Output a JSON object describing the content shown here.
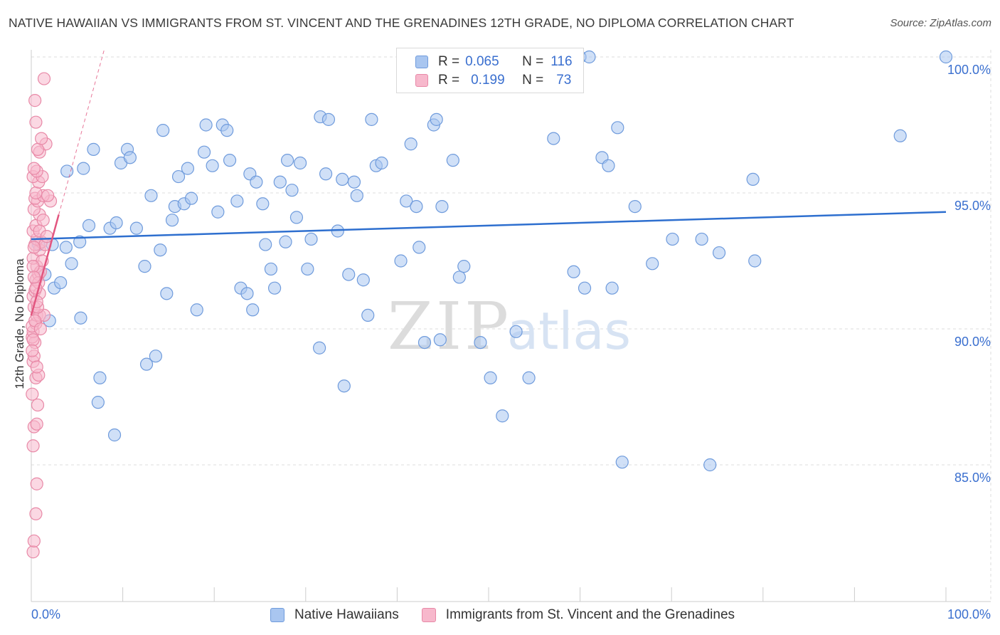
{
  "title": "NATIVE HAWAIIAN VS IMMIGRANTS FROM ST. VINCENT AND THE GRENADINES 12TH GRADE, NO DIPLOMA CORRELATION CHART",
  "source": "Source: ZipAtlas.com",
  "watermark": {
    "zip": "ZIP",
    "atlas": "atlas"
  },
  "legend_top": {
    "rows": [
      {
        "r_label": "R =",
        "r_value": "0.065",
        "n_label": "N =",
        "n_value": "116",
        "color": "#a9c6f0",
        "stroke": "#6f9bdc"
      },
      {
        "r_label": "R =",
        "r_value": "0.199",
        "n_label": "N =",
        "n_value": "73",
        "color": "#f7b8cc",
        "stroke": "#e889a7"
      }
    ]
  },
  "chart_data": {
    "type": "scatter",
    "title": "NATIVE HAWAIIAN VS IMMIGRANTS FROM ST. VINCENT AND THE GRENADINES 12TH GRADE, NO DIPLOMA CORRELATION CHART",
    "xlabel": "",
    "ylabel": "12th Grade, No Diploma",
    "xlim": [
      0,
      105
    ],
    "ylim": [
      80.2,
      100.9
    ],
    "x_tick_labels": [
      {
        "value": 0,
        "label": "0.0%"
      },
      {
        "value": 100,
        "label": "100.0%"
      }
    ],
    "y_tick_labels": [
      {
        "value": 85,
        "label": "85.0%"
      },
      {
        "value": 90,
        "label": "90.0%"
      },
      {
        "value": 95,
        "label": "95.0%"
      },
      {
        "value": 100,
        "label": "100.0%"
      }
    ],
    "grid": true,
    "legend_position": "bottom",
    "series": [
      {
        "name": "Native Hawaiians",
        "color": "#a9c6f0",
        "stroke": "#6f9bdc",
        "trend": {
          "x": [
            0,
            100
          ],
          "y": [
            93.3,
            94.3
          ],
          "color": "#2e6fcf"
        },
        "points": [
          [
            0.8,
            93.1
          ],
          [
            1.5,
            92.0
          ],
          [
            2.0,
            90.3
          ],
          [
            2.3,
            93.1
          ],
          [
            2.5,
            91.5
          ],
          [
            3.2,
            91.7
          ],
          [
            3.8,
            93.0
          ],
          [
            3.9,
            95.8
          ],
          [
            4.4,
            92.4
          ],
          [
            5.3,
            93.2
          ],
          [
            5.4,
            90.4
          ],
          [
            5.7,
            95.9
          ],
          [
            6.3,
            93.8
          ],
          [
            6.8,
            96.6
          ],
          [
            7.5,
            88.2
          ],
          [
            7.3,
            87.3
          ],
          [
            8.6,
            93.7
          ],
          [
            9.1,
            86.1
          ],
          [
            9.3,
            93.9
          ],
          [
            9.8,
            96.1
          ],
          [
            10.5,
            96.6
          ],
          [
            10.8,
            96.3
          ],
          [
            11.5,
            93.7
          ],
          [
            12.6,
            88.7
          ],
          [
            12.4,
            92.3
          ],
          [
            13.1,
            94.9
          ],
          [
            13.6,
            89.0
          ],
          [
            14.1,
            92.9
          ],
          [
            14.4,
            97.3
          ],
          [
            14.8,
            91.3
          ],
          [
            15.4,
            94.0
          ],
          [
            15.7,
            94.5
          ],
          [
            16.1,
            95.6
          ],
          [
            16.7,
            94.6
          ],
          [
            17.1,
            95.9
          ],
          [
            17.5,
            94.8
          ],
          [
            18.1,
            90.7
          ],
          [
            18.9,
            96.5
          ],
          [
            19.1,
            97.5
          ],
          [
            19.8,
            96.0
          ],
          [
            20.4,
            94.3
          ],
          [
            20.9,
            97.5
          ],
          [
            21.4,
            97.3
          ],
          [
            21.7,
            96.2
          ],
          [
            22.5,
            94.7
          ],
          [
            22.9,
            91.5
          ],
          [
            23.6,
            91.3
          ],
          [
            23.9,
            95.7
          ],
          [
            24.2,
            90.7
          ],
          [
            24.6,
            95.4
          ],
          [
            25.3,
            94.6
          ],
          [
            25.6,
            93.1
          ],
          [
            26.2,
            92.2
          ],
          [
            26.6,
            91.5
          ],
          [
            27.2,
            95.4
          ],
          [
            27.8,
            93.2
          ],
          [
            28.0,
            96.2
          ],
          [
            28.5,
            95.1
          ],
          [
            29.0,
            94.1
          ],
          [
            29.4,
            96.1
          ],
          [
            30.2,
            92.2
          ],
          [
            30.6,
            93.3
          ],
          [
            31.5,
            89.3
          ],
          [
            31.6,
            97.8
          ],
          [
            32.2,
            95.7
          ],
          [
            32.5,
            97.7
          ],
          [
            33.5,
            93.6
          ],
          [
            34.0,
            95.5
          ],
          [
            34.2,
            87.9
          ],
          [
            34.7,
            92.0
          ],
          [
            35.3,
            95.4
          ],
          [
            35.6,
            94.9
          ],
          [
            36.3,
            91.8
          ],
          [
            36.8,
            90.5
          ],
          [
            37.2,
            97.7
          ],
          [
            37.7,
            96.0
          ],
          [
            38.3,
            96.1
          ],
          [
            40.4,
            92.5
          ],
          [
            41.0,
            94.7
          ],
          [
            41.5,
            96.8
          ],
          [
            42.1,
            94.5
          ],
          [
            42.4,
            93.0
          ],
          [
            43.0,
            89.5
          ],
          [
            44.0,
            97.5
          ],
          [
            44.3,
            97.7
          ],
          [
            44.7,
            89.6
          ],
          [
            44.9,
            94.5
          ],
          [
            46.1,
            96.2
          ],
          [
            46.8,
            91.9
          ],
          [
            47.3,
            92.3
          ],
          [
            49.1,
            89.5
          ],
          [
            50.2,
            88.2
          ],
          [
            51.5,
            86.8
          ],
          [
            53.0,
            89.9
          ],
          [
            54.4,
            88.2
          ],
          [
            57.1,
            97.0
          ],
          [
            59.3,
            92.1
          ],
          [
            60.5,
            91.5
          ],
          [
            62.4,
            96.3
          ],
          [
            63.1,
            96.0
          ],
          [
            63.5,
            91.5
          ],
          [
            64.1,
            97.4
          ],
          [
            64.6,
            85.1
          ],
          [
            66.0,
            94.5
          ],
          [
            67.9,
            92.4
          ],
          [
            70.1,
            93.3
          ],
          [
            73.3,
            93.3
          ],
          [
            74.2,
            85.0
          ],
          [
            75.2,
            92.8
          ],
          [
            78.9,
            95.5
          ],
          [
            79.1,
            92.5
          ],
          [
            95.0,
            97.1
          ],
          [
            100.0,
            100.0
          ],
          [
            41.0,
            100.0
          ],
          [
            60.0,
            100.0
          ],
          [
            61.0,
            100.0
          ]
        ]
      },
      {
        "name": "Immigrants from St. Vincent and the Grenadines",
        "color": "#f7b8cc",
        "stroke": "#e889a7",
        "trend": {
          "x": [
            0,
            3.0
          ],
          "y": [
            90.5,
            94.2
          ],
          "color": "#e2557f",
          "extension": {
            "x": [
              3.0,
              8.0
            ],
            "y": [
              94.2,
              100.3
            ]
          }
        },
        "points": [
          [
            0.2,
            81.8
          ],
          [
            0.3,
            82.2
          ],
          [
            0.5,
            83.2
          ],
          [
            0.6,
            84.3
          ],
          [
            0.2,
            85.7
          ],
          [
            0.3,
            86.4
          ],
          [
            0.6,
            86.5
          ],
          [
            0.1,
            87.6
          ],
          [
            0.7,
            87.2
          ],
          [
            0.5,
            88.2
          ],
          [
            0.8,
            88.3
          ],
          [
            0.2,
            88.8
          ],
          [
            0.3,
            89.0
          ],
          [
            0.4,
            89.5
          ],
          [
            0.1,
            89.7
          ],
          [
            0.2,
            89.9
          ],
          [
            0.5,
            90.2
          ],
          [
            0.6,
            90.5
          ],
          [
            0.9,
            90.5
          ],
          [
            1.4,
            90.5
          ],
          [
            0.3,
            90.8
          ],
          [
            0.7,
            90.8
          ],
          [
            0.2,
            91.2
          ],
          [
            0.4,
            91.4
          ],
          [
            0.9,
            91.3
          ],
          [
            0.5,
            91.8
          ],
          [
            0.8,
            92.0
          ],
          [
            0.6,
            92.3
          ],
          [
            0.2,
            92.6
          ],
          [
            0.9,
            92.9
          ],
          [
            0.4,
            93.1
          ],
          [
            1.1,
            93.2
          ],
          [
            0.6,
            93.3
          ],
          [
            1.5,
            93.1
          ],
          [
            0.2,
            93.6
          ],
          [
            0.5,
            93.8
          ],
          [
            0.9,
            94.2
          ],
          [
            0.3,
            94.4
          ],
          [
            0.7,
            94.7
          ],
          [
            2.1,
            94.7
          ],
          [
            0.4,
            94.8
          ],
          [
            1.3,
            94.9
          ],
          [
            1.8,
            94.9
          ],
          [
            0.5,
            95.0
          ],
          [
            0.8,
            95.4
          ],
          [
            0.2,
            95.6
          ],
          [
            1.2,
            95.6
          ],
          [
            0.6,
            95.8
          ],
          [
            0.3,
            95.9
          ],
          [
            0.9,
            96.5
          ],
          [
            1.6,
            96.8
          ],
          [
            0.7,
            96.6
          ],
          [
            1.1,
            97.0
          ],
          [
            0.5,
            97.6
          ],
          [
            0.4,
            98.4
          ],
          [
            1.4,
            99.2
          ],
          [
            0.1,
            90.1
          ],
          [
            0.2,
            89.6
          ],
          [
            1.0,
            92.1
          ],
          [
            0.3,
            93.0
          ],
          [
            0.6,
            91.0
          ],
          [
            0.4,
            90.3
          ],
          [
            1.2,
            92.5
          ],
          [
            0.8,
            91.7
          ],
          [
            0.2,
            92.3
          ],
          [
            0.5,
            91.5
          ],
          [
            1.3,
            94.0
          ],
          [
            0.9,
            93.6
          ],
          [
            0.1,
            89.2
          ],
          [
            0.6,
            88.6
          ],
          [
            1.7,
            93.4
          ],
          [
            0.3,
            91.9
          ],
          [
            1.0,
            90.0
          ]
        ]
      }
    ]
  },
  "legend_bottom": [
    {
      "label": "Native Hawaiians",
      "color": "#a9c6f0",
      "stroke": "#6f9bdc"
    },
    {
      "label": "Immigrants from St. Vincent and the Grenadines",
      "color": "#f7b8cc",
      "stroke": "#e889a7"
    }
  ],
  "colors": {
    "tick_label": "#3a6fcf",
    "grid": "#dddddd",
    "axis": "#cccccc"
  }
}
